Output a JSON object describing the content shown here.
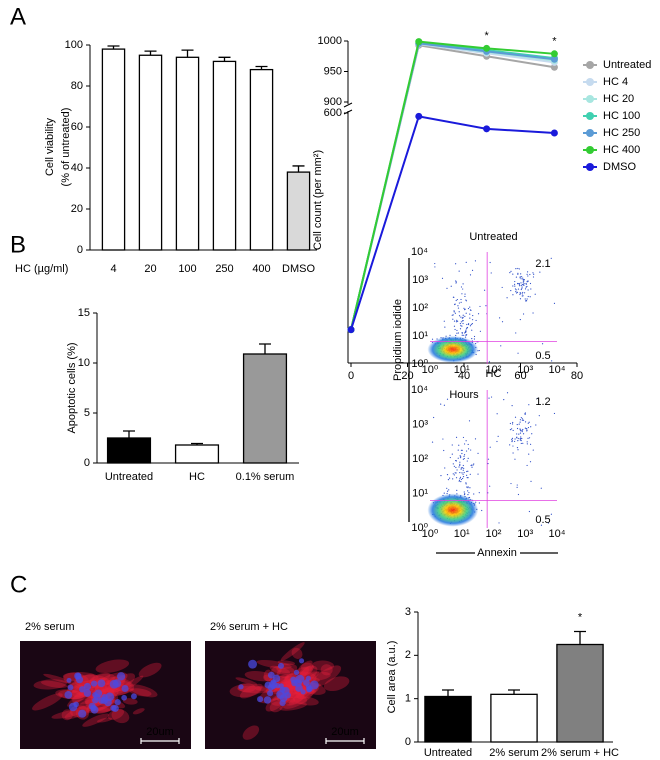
{
  "panel_labels": [
    "A",
    "B",
    "C"
  ],
  "chart_data": [
    {
      "type": "bar",
      "ylabel": [
        "Cell viability",
        "(% of untreated)"
      ],
      "xlabel": "HC (µg/ml)",
      "categories": [
        "4",
        "20",
        "100",
        "250",
        "400",
        "DMSO"
      ],
      "values": [
        98,
        95,
        94,
        92,
        88,
        38
      ],
      "errors": [
        1.5,
        2,
        3.5,
        2,
        1.5,
        3
      ],
      "colors": [
        "#ffffff",
        "#ffffff",
        "#ffffff",
        "#ffffff",
        "#ffffff",
        "#d9d9d9"
      ],
      "ylim": [
        0,
        100
      ],
      "yticks": [
        0,
        20,
        40,
        60,
        80,
        100
      ]
    },
    {
      "type": "line",
      "ylabel": "Cell count (per mm²)",
      "xlabel": "Hours",
      "x": [
        0,
        24,
        48,
        72
      ],
      "xlim": [
        0,
        80
      ],
      "xticks": [
        0,
        20,
        40,
        60,
        80
      ],
      "ylim": [
        300,
        1000
      ],
      "y_break": [
        600,
        900
      ],
      "yticks": [
        600,
        900,
        950,
        1000
      ],
      "series": [
        {
          "name": "Untreated",
          "color": "#a6a6a6",
          "values": [
            340,
            993,
            975,
            957
          ]
        },
        {
          "name": "HC 4",
          "color": "#c6dbef",
          "values": [
            340,
            995,
            980,
            965
          ]
        },
        {
          "name": "HC 20",
          "color": "#a8e6e0",
          "values": [
            340,
            996,
            982,
            968
          ]
        },
        {
          "name": "HC 100",
          "color": "#40d0b0",
          "values": [
            340,
            997,
            985,
            972
          ]
        },
        {
          "name": "HC 250",
          "color": "#5b9bd5",
          "values": [
            340,
            996,
            983,
            970
          ]
        },
        {
          "name": "HC 400",
          "color": "#33cc33",
          "values": [
            340,
            999,
            988,
            979
          ]
        },
        {
          "name": "DMSO",
          "color": "#1a1adb",
          "values": [
            340,
            596,
            581,
            576
          ]
        }
      ],
      "annotations": [
        {
          "text": "*",
          "x": 48
        },
        {
          "text": "*",
          "x": 72
        }
      ]
    },
    {
      "type": "bar",
      "ylabel": "Apoptotic cells (%)",
      "categories": [
        "Untreated",
        "HC",
        "0.1% serum"
      ],
      "values": [
        2.5,
        1.8,
        10.9
      ],
      "errors": [
        0.7,
        0.15,
        1.0
      ],
      "colors": [
        "#000000",
        "#ffffff",
        "#999999"
      ],
      "ylim": [
        0,
        15
      ],
      "yticks": [
        0,
        5,
        10,
        15
      ]
    },
    {
      "type": "bar",
      "ylabel": "Cell area (a.u.)",
      "categories": [
        "Untreated",
        "2% serum",
        "2% serum + HC"
      ],
      "values": [
        1.05,
        1.1,
        2.25
      ],
      "errors": [
        0.15,
        0.1,
        0.3
      ],
      "colors": [
        "#000000",
        "#ffffff",
        "#808080"
      ],
      "ylim": [
        0,
        3
      ],
      "yticks": [
        0,
        1,
        2,
        3
      ],
      "annotations": [
        {
          "text": "*",
          "x": 2
        }
      ]
    }
  ],
  "flow": {
    "ylabel": "Propidium iodide",
    "xlabel": "Annexin",
    "ticks": [
      "10⁰",
      "10¹",
      "10²",
      "10³",
      "10⁴"
    ],
    "plots": [
      {
        "title": "Untreated",
        "upper_right": 2.1,
        "lower_right": 0.5
      },
      {
        "title": "HC",
        "upper_right": 1.2,
        "lower_right": 0.5
      }
    ]
  },
  "micrographs": [
    {
      "label": "2% serum",
      "scale_bar": "20um"
    },
    {
      "label": "2% serum + HC",
      "scale_bar": "20um"
    }
  ]
}
